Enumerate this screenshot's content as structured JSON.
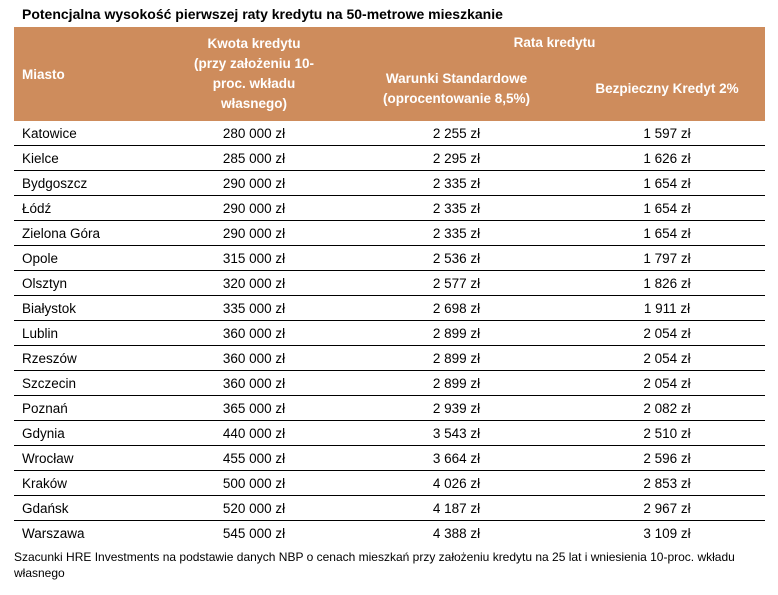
{
  "title": "Potencjalna wysokość pierwszej raty kredytu na 50-metrowe mieszkanie",
  "colors": {
    "header_bg": "#CE8C5C",
    "header_text": "#FFFFFF",
    "row_divider": "#000000",
    "body_text": "#000000"
  },
  "chart_data": {
    "type": "table",
    "title": "Potencjalna wysokość pierwszej raty kredytu na 50-metrowe mieszkanie",
    "group_header": "Rata kredytu",
    "headers": {
      "city": "Miasto",
      "loan_amount": "Kwota kredytu\n(przy założeniu 10-\nproc. wkładu\nwłasnego)",
      "standard": "Warunki Standardowe\n(oprocentowanie 8,5%)",
      "safe_credit": "Bezpieczny Kredyt 2%"
    },
    "rows": [
      {
        "city": "Katowice",
        "loan": "280 000 zł",
        "standard": "2 255 zł",
        "safe": "1 597 zł"
      },
      {
        "city": "Kielce",
        "loan": "285 000 zł",
        "standard": "2 295 zł",
        "safe": "1 626 zł"
      },
      {
        "city": "Bydgoszcz",
        "loan": "290 000 zł",
        "standard": "2 335 zł",
        "safe": "1 654 zł"
      },
      {
        "city": "Łódź",
        "loan": "290 000 zł",
        "standard": "2 335 zł",
        "safe": "1 654 zł"
      },
      {
        "city": "Zielona Góra",
        "loan": "290 000 zł",
        "standard": "2 335 zł",
        "safe": "1 654 zł"
      },
      {
        "city": "Opole",
        "loan": "315 000 zł",
        "standard": "2 536 zł",
        "safe": "1 797 zł"
      },
      {
        "city": "Olsztyn",
        "loan": "320 000 zł",
        "standard": "2 577 zł",
        "safe": "1 826 zł"
      },
      {
        "city": "Białystok",
        "loan": "335 000 zł",
        "standard": "2 698 zł",
        "safe": "1 911 zł"
      },
      {
        "city": "Lublin",
        "loan": "360 000 zł",
        "standard": "2 899 zł",
        "safe": "2 054 zł"
      },
      {
        "city": "Rzeszów",
        "loan": "360 000 zł",
        "standard": "2 899 zł",
        "safe": "2 054 zł"
      },
      {
        "city": "Szczecin",
        "loan": "360 000 zł",
        "standard": "2 899 zł",
        "safe": "2 054 zł"
      },
      {
        "city": "Poznań",
        "loan": "365 000 zł",
        "standard": "2 939 zł",
        "safe": "2 082 zł"
      },
      {
        "city": "Gdynia",
        "loan": "440 000 zł",
        "standard": "3 543 zł",
        "safe": "2 510 zł"
      },
      {
        "city": "Wrocław",
        "loan": "455 000 zł",
        "standard": "3 664 zł",
        "safe": "2 596 zł"
      },
      {
        "city": "Kraków",
        "loan": "500 000 zł",
        "standard": "4 026 zł",
        "safe": "2 853 zł"
      },
      {
        "city": "Gdańsk",
        "loan": "520 000 zł",
        "standard": "4 187 zł",
        "safe": "2 967 zł"
      },
      {
        "city": "Warszawa",
        "loan": "545 000 zł",
        "standard": "4 388 zł",
        "safe": "3 109 zł"
      }
    ],
    "source": "Szacunki HRE Investments na podstawie danych NBP o cenach mieszkań przy założeniu kredytu na 25 lat i wniesienia 10-proc. wkładu własnego"
  }
}
